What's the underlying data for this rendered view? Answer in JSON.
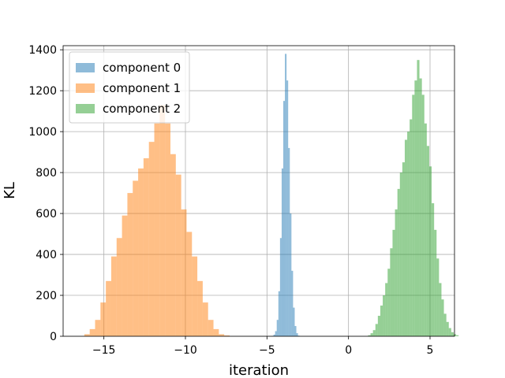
{
  "chart_data": {
    "type": "histogram",
    "title": "",
    "xlabel": "iteration",
    "ylabel": "KL",
    "xlim": [
      -17.5,
      6.5
    ],
    "ylim": [
      0,
      1420
    ],
    "xticks": [
      -15,
      -10,
      -5,
      0,
      5
    ],
    "xtick_labels": [
      "−15",
      "−10",
      "−5",
      "0",
      "5"
    ],
    "yticks": [
      0,
      200,
      400,
      600,
      800,
      1000,
      1200,
      1400
    ],
    "ytick_labels": [
      "0",
      "200",
      "400",
      "600",
      "800",
      "1000",
      "1200",
      "1400"
    ],
    "grid": true,
    "legend_position": "top-left",
    "series": [
      {
        "name": "component 0",
        "color": "#1f77b4",
        "alpha": 0.5,
        "bin_start": -4.7,
        "bin_width": 0.1,
        "counts": [
          2,
          8,
          25,
          80,
          220,
          480,
          820,
          1150,
          1380,
          1250,
          920,
          600,
          320,
          140,
          50,
          15,
          3
        ]
      },
      {
        "name": "component 1",
        "color": "#ff7f0e",
        "alpha": 0.5,
        "bin_start": -16.2,
        "bin_width": 0.33,
        "counts": [
          10,
          35,
          80,
          165,
          270,
          390,
          480,
          590,
          700,
          760,
          820,
          870,
          950,
          1040,
          1130,
          1040,
          890,
          790,
          620,
          510,
          390,
          270,
          165,
          80,
          35,
          10,
          4
        ]
      },
      {
        "name": "component 2",
        "color": "#2ca02c",
        "alpha": 0.5,
        "bin_start": 1.2,
        "bin_width": 0.15,
        "counts": [
          5,
          15,
          30,
          60,
          100,
          150,
          200,
          260,
          330,
          430,
          520,
          620,
          720,
          800,
          850,
          960,
          1000,
          1060,
          1180,
          1250,
          1350,
          1260,
          1180,
          1040,
          930,
          830,
          650,
          520,
          380,
          260,
          180,
          110,
          70,
          40,
          20,
          10,
          5
        ]
      }
    ]
  }
}
